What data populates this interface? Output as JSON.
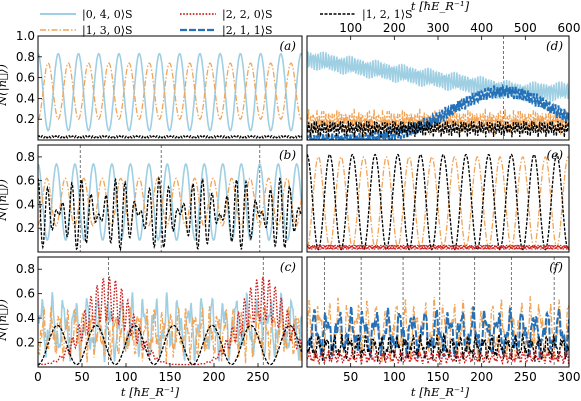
{
  "colors": {
    "s040": "#9fcfe3",
    "s130": "#f2a456",
    "s220": "#cc1f1f",
    "s211": "#2471b8",
    "s121": "#000000",
    "ref": "#555555"
  },
  "legend": [
    {
      "key": "s040",
      "label": "|0, 4, 0⟩S"
    },
    {
      "key": "s130",
      "label": "|1, 3, 0⟩S"
    },
    {
      "key": "s220",
      "label": "|2, 2, 0⟩S"
    },
    {
      "key": "s211",
      "label": "|2, 1, 1⟩S"
    },
    {
      "key": "s121",
      "label": "|1, 2, 1⟩S"
    }
  ],
  "axes": {
    "ylabel": "N(|n⃗⟩)",
    "xlabel_bottom": "t [ħE_R⁻¹]",
    "xlabel_top": "t [ħE_R⁻¹]"
  },
  "chart_data": [
    {
      "panel": "(a)",
      "type": "line",
      "xlim": [
        0,
        300
      ],
      "ylim": [
        0,
        1.0
      ],
      "yticks": [
        0.2,
        0.4,
        0.6,
        0.8,
        1.0
      ],
      "series": [
        {
          "key": "s040",
          "form": "cos",
          "mean": 0.46,
          "amp": 0.37,
          "period": 23,
          "phase": 0
        },
        {
          "key": "s130",
          "form": "cos",
          "mean": 0.47,
          "amp": 0.27,
          "period": 23,
          "phase": 11.5
        },
        {
          "key": "s121",
          "form": "flat",
          "mean": 0.03,
          "amp": 0.01,
          "period": 11.5,
          "phase": 0
        }
      ]
    },
    {
      "panel": "(b)",
      "type": "line",
      "xlim": [
        0,
        300
      ],
      "ylim": [
        0,
        0.9
      ],
      "yticks": [
        0.2,
        0.4,
        0.6,
        0.8
      ],
      "markers": [
        48,
        140,
        252
      ],
      "series": [
        {
          "key": "s040",
          "form": "cos",
          "mean": 0.42,
          "amp": 0.32,
          "period": 21,
          "phase": 0
        },
        {
          "key": "s130",
          "form": "cos",
          "mean": 0.42,
          "amp": 0.2,
          "period": 21,
          "phase": 10
        },
        {
          "key": "s121",
          "form": "beat",
          "mean": 0.32,
          "amp": 0.3,
          "period": 11,
          "phase": 0
        }
      ]
    },
    {
      "panel": "(c)",
      "type": "line",
      "xlim": [
        0,
        300
      ],
      "ylim": [
        0,
        0.9
      ],
      "yticks": [
        0.2,
        0.4,
        0.6,
        0.8
      ],
      "markers": [
        80,
        256
      ],
      "series": [
        {
          "key": "s040",
          "form": "noisy",
          "mean": 0.32,
          "amp": 0.3,
          "period": 13,
          "phase": 0
        },
        {
          "key": "s130",
          "form": "noisy",
          "mean": 0.28,
          "amp": 0.25,
          "period": 9,
          "phase": 4
        },
        {
          "key": "s220",
          "form": "bump",
          "mean": 0.38,
          "amp": 0.36,
          "period": 176,
          "phase": 80
        },
        {
          "key": "s121",
          "form": "cos",
          "mean": 0.18,
          "amp": 0.16,
          "period": 44,
          "phase": 22
        }
      ]
    },
    {
      "panel": "(d)",
      "type": "line",
      "xlim": [
        0,
        600
      ],
      "ylim": [
        0,
        0.9
      ],
      "xticks_top": [
        100,
        200,
        300,
        400,
        500,
        600
      ],
      "markers": [
        450
      ],
      "series": [
        {
          "key": "s040",
          "form": "decay",
          "mean": 0.7,
          "amp": 0.06,
          "period": 6,
          "phase": 0
        },
        {
          "key": "s130",
          "form": "noisy",
          "mean": 0.16,
          "amp": 0.12,
          "period": 5,
          "phase": 2
        },
        {
          "key": "s211",
          "form": "rise",
          "mean": 0.42,
          "amp": 0.04,
          "period": 7,
          "phase": 0
        },
        {
          "key": "s121",
          "form": "noisy",
          "mean": 0.1,
          "amp": 0.08,
          "period": 6,
          "phase": 3
        }
      ]
    },
    {
      "panel": "(e)",
      "type": "line",
      "xlim": [
        0,
        300
      ],
      "ylim": [
        0,
        0.9
      ],
      "series": [
        {
          "key": "s130",
          "form": "cos",
          "mean": 0.42,
          "amp": 0.38,
          "period": 26,
          "phase": 13
        },
        {
          "key": "s121",
          "form": "cos",
          "mean": 0.42,
          "amp": 0.4,
          "period": 26,
          "phase": 0
        },
        {
          "key": "s220",
          "form": "flat",
          "mean": 0.04,
          "amp": 0.02,
          "period": 6,
          "phase": 0
        }
      ]
    },
    {
      "panel": "(f)",
      "type": "line",
      "xlim": [
        0,
        300
      ],
      "ylim": [
        0,
        0.9
      ],
      "xticks": [
        50,
        100,
        150,
        200,
        250,
        300
      ],
      "markers": [
        20,
        62,
        110,
        152,
        192,
        234,
        283
      ],
      "series": [
        {
          "key": "s130",
          "form": "noisy",
          "mean": 0.3,
          "amp": 0.28,
          "period": 11,
          "phase": 0
        },
        {
          "key": "s211",
          "form": "noisy",
          "mean": 0.28,
          "amp": 0.22,
          "period": 14,
          "phase": 5
        },
        {
          "key": "s121",
          "form": "noisy",
          "mean": 0.16,
          "amp": 0.12,
          "period": 9,
          "phase": 2
        },
        {
          "key": "s220",
          "form": "noisy",
          "mean": 0.08,
          "amp": 0.06,
          "period": 7,
          "phase": 1
        }
      ]
    }
  ],
  "x_ticks_bottom_left": [
    0,
    50,
    100,
    150,
    200,
    250
  ],
  "y_ticks_left": {
    "top": [
      "0.2",
      "0.4",
      "0.6",
      "0.8",
      "1.0"
    ],
    "mid": [
      "0.2",
      "0.4",
      "0.6",
      "0.8"
    ],
    "bot": [
      "0.2",
      "0.4",
      "0.6",
      "0.8"
    ]
  }
}
